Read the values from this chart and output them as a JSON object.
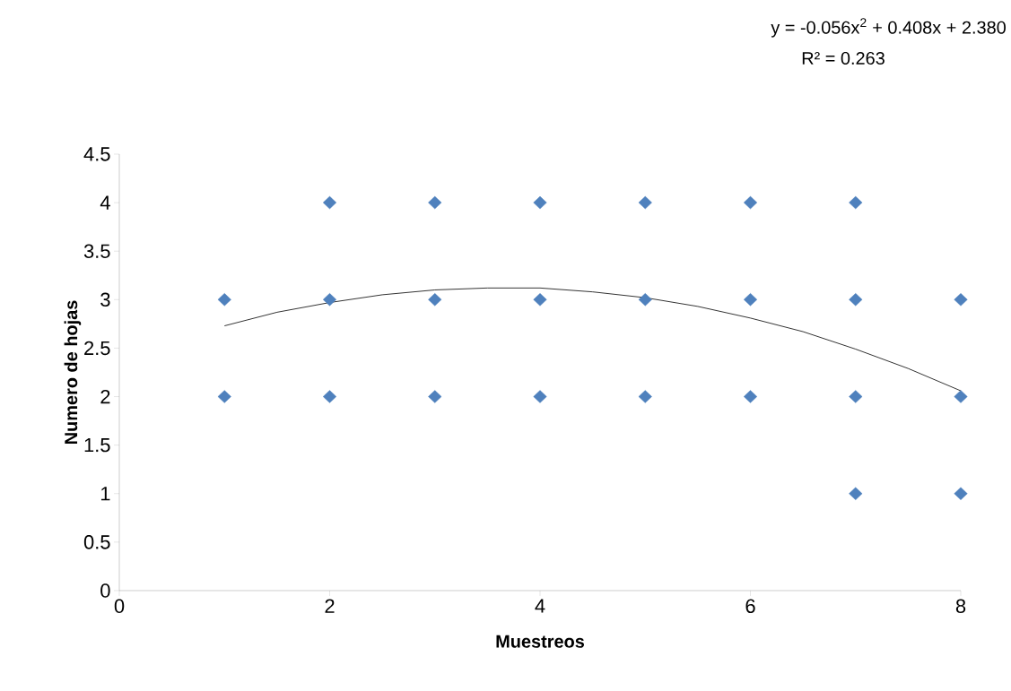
{
  "chart_data": {
    "type": "scatter",
    "xlabel": "Muestreos",
    "ylabel": "Numero de  hojas",
    "annotations": [
      "y = -0.056x$^{2}$ + 0.408x + 2.380",
      "R² = 0.263"
    ],
    "xlim": [
      0,
      8
    ],
    "xticks": [
      0,
      2,
      4,
      6,
      8
    ],
    "ylim": [
      0,
      4.5
    ],
    "yticks": [
      0,
      0.5,
      1,
      1.5,
      2,
      2.5,
      3,
      3.5,
      4,
      4.5
    ],
    "grid": false,
    "series": [
      {
        "color": "#4f81bd",
        "marker": "diamond",
        "x": [
          1,
          1,
          2,
          2,
          2,
          3,
          3,
          3,
          4,
          4,
          4,
          5,
          5,
          5,
          6,
          6,
          6,
          7,
          7,
          7,
          7,
          8,
          8,
          8
        ],
        "values": [
          3,
          2,
          4,
          3,
          2,
          4,
          3,
          2,
          4,
          3,
          2,
          4,
          3,
          2,
          4,
          3,
          2,
          4,
          3,
          2,
          1,
          3,
          2,
          1
        ]
      },
      {
        "type": "line",
        "color": "#000000",
        "marker": "none",
        "line_style": "solid",
        "x": [
          1,
          1.5,
          2,
          2.5,
          3,
          3.5,
          4,
          4.5,
          5,
          5.5,
          6,
          6.5,
          7,
          7.5,
          8
        ],
        "values": [
          2.73,
          2.87,
          2.97,
          3.05,
          3.1,
          3.12,
          3.12,
          3.08,
          3.02,
          2.93,
          2.81,
          2.67,
          2.49,
          2.29,
          2.06
        ]
      }
    ]
  }
}
